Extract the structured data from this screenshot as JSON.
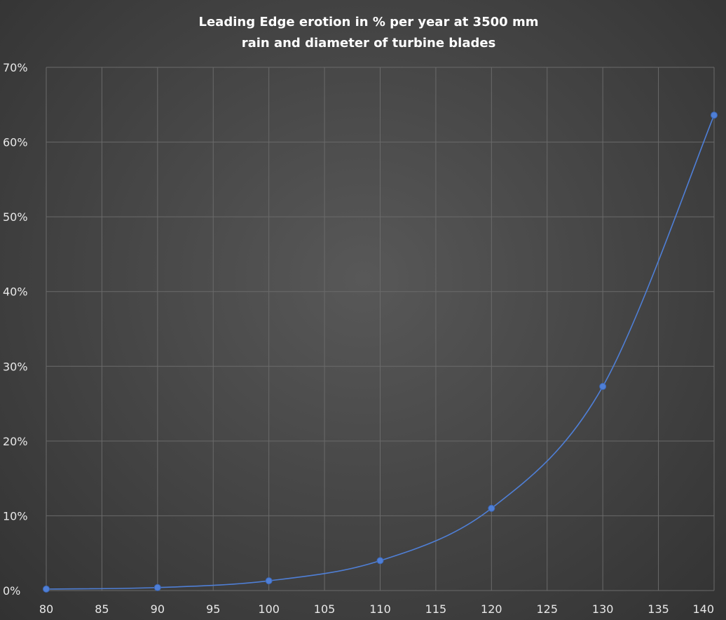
{
  "chart_data": {
    "type": "line",
    "title": {
      "bold_part": "Leading Edge erotion",
      "rest_part": " in % per year at 3500 mm",
      "line2": "rain and diameter of turbine blades"
    },
    "xlabel": "",
    "ylabel": "",
    "x_ticks": [
      "80",
      "85",
      "90",
      "95",
      "100",
      "105",
      "110",
      "115",
      "120",
      "125",
      "130",
      "135",
      "140"
    ],
    "y_ticks": [
      "0%",
      "10%",
      "20%",
      "30%",
      "40%",
      "50%",
      "60%",
      "70%"
    ],
    "xlim": [
      80,
      140
    ],
    "ylim": [
      0,
      70
    ],
    "grid": true,
    "smooth": true,
    "series": [
      {
        "x": [
          80,
          90,
          100,
          110,
          120,
          130,
          140
        ],
        "y": [
          0.2,
          0.4,
          1.3,
          4.0,
          11.0,
          27.3,
          63.6
        ],
        "color": "#4f7fd6"
      }
    ]
  }
}
